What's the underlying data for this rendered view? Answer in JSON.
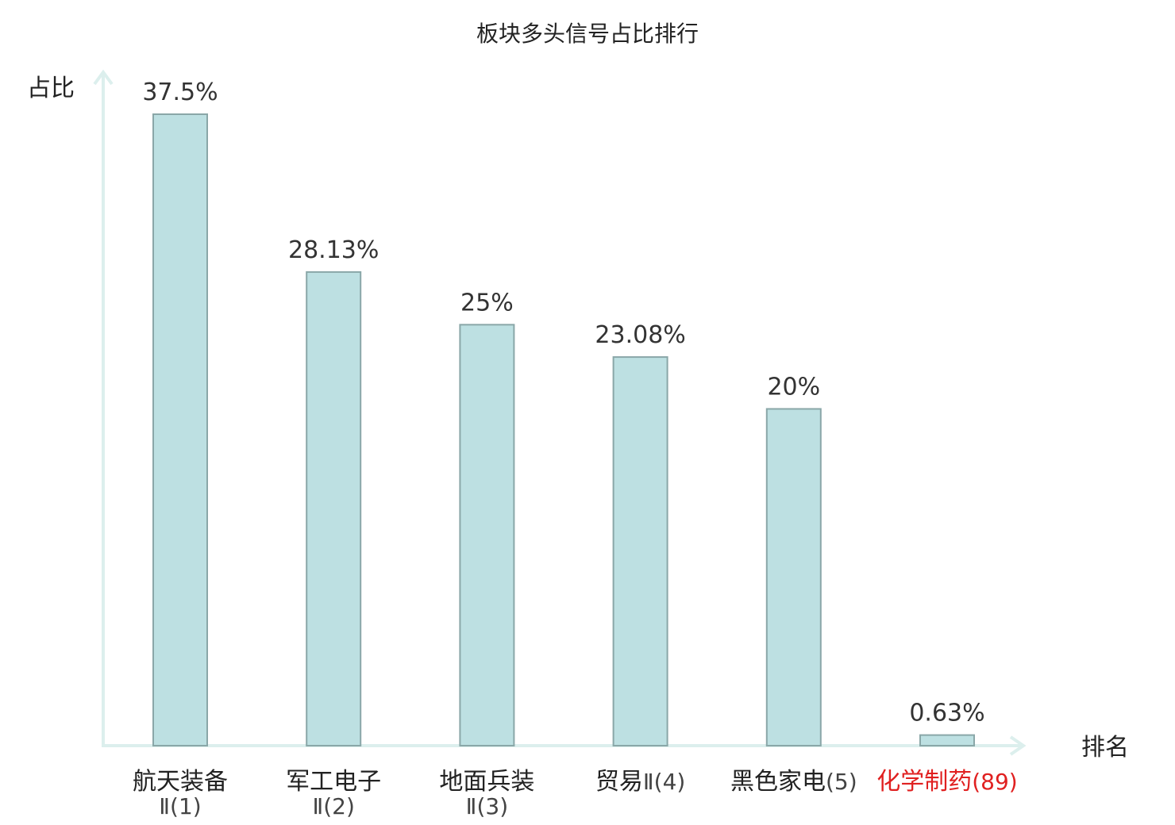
{
  "chart_data": {
    "type": "bar",
    "title": "板块多头信号占比排行",
    "ylabel": "占比",
    "xlabel": "排名",
    "ylim": [
      0,
      40
    ],
    "grid": false,
    "legend": "none",
    "categories": [
      {
        "name": "航天装备",
        "suffix": "Ⅱ(1)",
        "wrap": true,
        "highlight": false
      },
      {
        "name": "军工电子",
        "suffix": "Ⅱ(2)",
        "wrap": true,
        "highlight": false
      },
      {
        "name": "地面兵装",
        "suffix": "Ⅱ(3)",
        "wrap": true,
        "highlight": false
      },
      {
        "name": "贸易",
        "suffix": "Ⅱ(4)",
        "wrap": false,
        "highlight": false
      },
      {
        "name": "黑色家电",
        "suffix": "(5)",
        "wrap": false,
        "highlight": false
      },
      {
        "name": "化学制药",
        "suffix": "(89)",
        "wrap": false,
        "highlight": true
      }
    ],
    "values": [
      37.5,
      28.13,
      25,
      23.08,
      20,
      0.63
    ],
    "value_labels": [
      "37.5%",
      "28.13%",
      "25%",
      "23.08%",
      "20%",
      "0.63%"
    ],
    "colors": {
      "bar_fill": "#bde0e2",
      "bar_stroke": "#8aa7a8",
      "axis": "#dcefed",
      "highlight": "#e02020",
      "text": "#222222"
    }
  }
}
